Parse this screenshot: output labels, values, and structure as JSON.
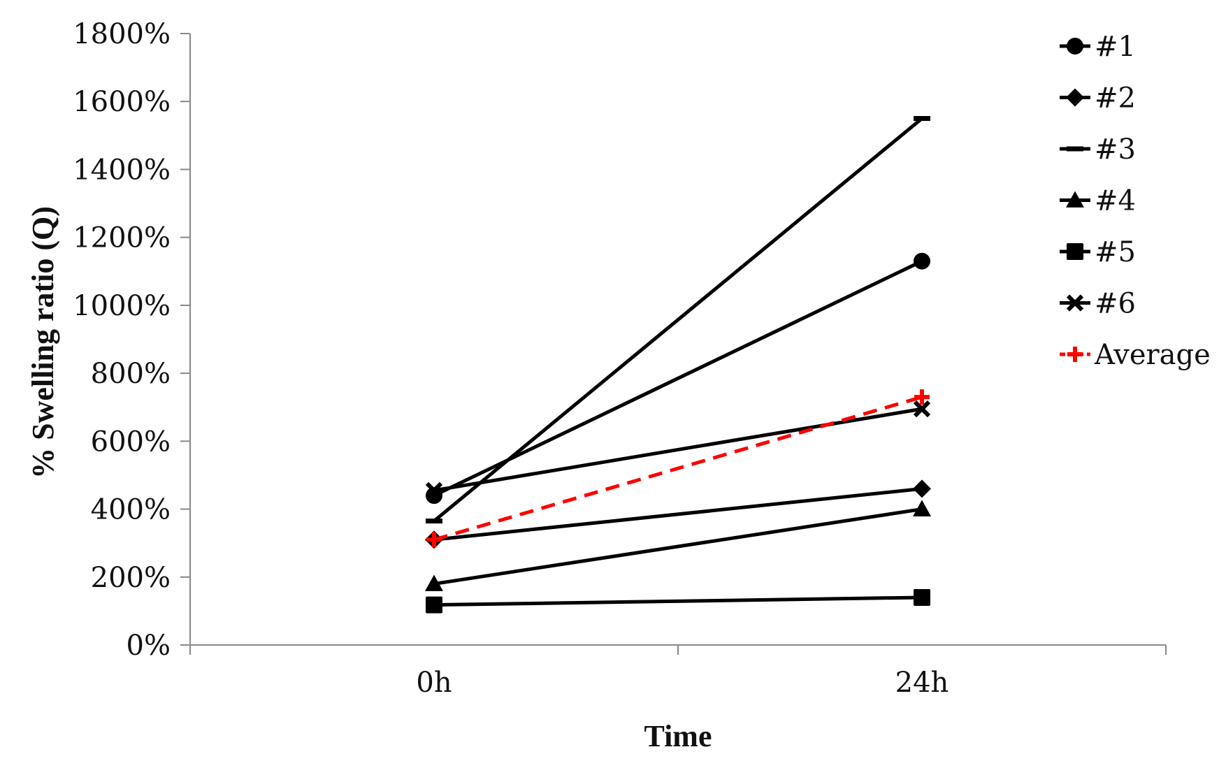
{
  "chart_data": {
    "type": "line",
    "title": "",
    "xlabel": "Time",
    "ylabel": "% Swelling ratio (Q)",
    "categories": [
      "0h",
      "24h"
    ],
    "ylim": [
      0,
      1800
    ],
    "y_ticks": [
      0,
      200,
      400,
      600,
      800,
      1000,
      1200,
      1400,
      1600,
      1800
    ],
    "y_tick_labels": [
      "0%",
      "200%",
      "400%",
      "600%",
      "800%",
      "1000%",
      "1200%",
      "1400%",
      "1600%",
      "1800%"
    ],
    "grid": false,
    "legend_position": "right",
    "series": [
      {
        "name": "#1",
        "values": [
          440,
          1130
        ],
        "marker": "circle",
        "color": "#000000",
        "dash": false
      },
      {
        "name": "#2",
        "values": [
          310,
          460
        ],
        "marker": "diamond",
        "color": "#000000",
        "dash": false
      },
      {
        "name": "#3",
        "values": [
          365,
          1550
        ],
        "marker": "dash",
        "color": "#000000",
        "dash": false
      },
      {
        "name": "#4",
        "values": [
          180,
          400
        ],
        "marker": "triangle",
        "color": "#000000",
        "dash": false
      },
      {
        "name": "#5",
        "values": [
          118,
          140
        ],
        "marker": "square",
        "color": "#000000",
        "dash": false
      },
      {
        "name": "#6",
        "values": [
          455,
          695
        ],
        "marker": "x",
        "color": "#000000",
        "dash": false
      },
      {
        "name": "Average",
        "values": [
          310,
          730
        ],
        "marker": "plus",
        "color": "#ff0000",
        "dash": true
      }
    ]
  }
}
